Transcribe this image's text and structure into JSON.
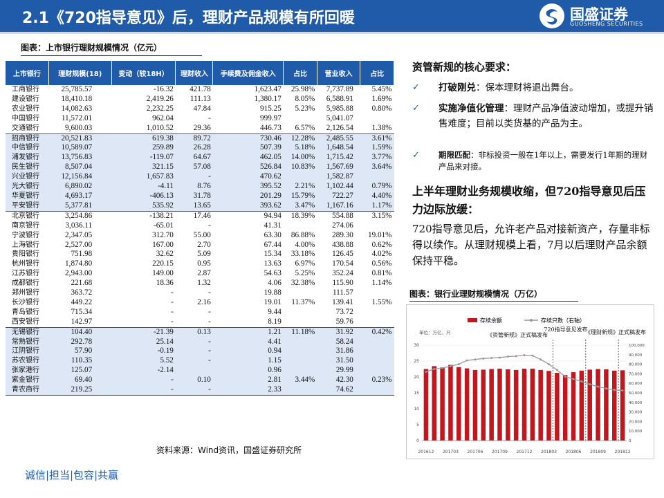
{
  "header": {
    "title": "2.1《720指导意见》后，理财产品规模有所回暖"
  },
  "logo": {
    "name": "国盛证券",
    "sub": "GUOSHENG SECURITIES",
    "icon": "guosheng-logo-icon"
  },
  "table_caption": "图表：上市银行理财规模情况（亿元）",
  "table": {
    "headers": [
      "上市银行",
      "理财规模(18)",
      "变动（较18H）",
      "理财收入",
      "手续费及佣金收入",
      "占比",
      "营业收入",
      "占比"
    ],
    "groups": [
      [
        [
          "工商银行",
          "25,785.57",
          "-16.32",
          "421.78",
          "1,623.47",
          "25.98%",
          "7,737.89",
          "5.45%"
        ],
        [
          "建设银行",
          "18,410.18",
          "2,419.26",
          "111.13",
          "1,380.17",
          "8.05%",
          "6,588.91",
          "1.69%"
        ],
        [
          "农业银行",
          "14,082.63",
          "2,232.25",
          "47.84",
          "915.25",
          "5.23%",
          "5,985.88",
          "0.80%"
        ],
        [
          "中国银行",
          "11,572.01",
          "962.04",
          "-",
          "999.97",
          "",
          "5,041.07",
          ""
        ],
        [
          "交通银行",
          "9,600.03",
          "1,010.52",
          "29.36",
          "446.73",
          "6.57%",
          "2,126.54",
          "1.38%"
        ]
      ],
      [
        [
          "招商银行",
          "20,521.83",
          "619.38",
          "89.72",
          "730.46",
          "12.28%",
          "2,485.55",
          "3.61%"
        ],
        [
          "中信银行",
          "10,589.07",
          "259.89",
          "26.28",
          "507.39",
          "5.18%",
          "1,648.54",
          "1.59%"
        ],
        [
          "浦发银行",
          "13,756.83",
          "-119.07",
          "64.67",
          "462.05",
          "14.00%",
          "1,715.42",
          "3.77%"
        ],
        [
          "民生银行",
          "8,507.04",
          "321.15",
          "57.08",
          "526.84",
          "10.83%",
          "1,567.69",
          "3.64%"
        ],
        [
          "兴业银行",
          "12,156.84",
          "1,657.83",
          "-",
          "470.62",
          "",
          "1,582.87",
          ""
        ],
        [
          "光大银行",
          "6,890.02",
          "-4.11",
          "8.76",
          "395.52",
          "2.21%",
          "1,102.44",
          "0.79%"
        ],
        [
          "华夏银行",
          "4,693.17",
          "-406.13",
          "31.78",
          "201.29",
          "15.79%",
          "722.27",
          "4.40%"
        ],
        [
          "平安银行",
          "5,377.81",
          "535.92",
          "13.65",
          "393.62",
          "3.47%",
          "1,167.16",
          "1.17%"
        ]
      ],
      [
        [
          "北京银行",
          "3,254.86",
          "-138.21",
          "17.46",
          "94.94",
          "18.39%",
          "554.88",
          "3.15%"
        ],
        [
          "南京银行",
          "3,036.11",
          "-65.01",
          "-",
          "41.31",
          "",
          "274.06",
          ""
        ],
        [
          "宁波银行",
          "2,347.05",
          "312.70",
          "55.00",
          "63.30",
          "86.88%",
          "289.30",
          "19.01%"
        ],
        [
          "上海银行",
          "2,527.00",
          "167.00",
          "2.70",
          "67.44",
          "4.00%",
          "438.88",
          "0.62%"
        ],
        [
          "贵阳银行",
          "751.98",
          "32.62",
          "5.09",
          "15.34",
          "33.18%",
          "126.45",
          "4.02%"
        ],
        [
          "杭州银行",
          "1,874.80",
          "220.15",
          "0.95",
          "13.63",
          "6.97%",
          "170.54",
          "0.56%"
        ],
        [
          "江苏银行",
          "2,943.00",
          "149.00",
          "2.87",
          "54.63",
          "5.25%",
          "352.24",
          "0.81%"
        ],
        [
          "成都银行",
          "221.68",
          "18.36",
          "1.32",
          "4.06",
          "32.38%",
          "115.90",
          "1.14%"
        ],
        [
          "郑州银行",
          "363.72",
          "-",
          "-",
          "19.88",
          "",
          "111.57",
          ""
        ],
        [
          "长沙银行",
          "449.22",
          "-",
          "2.16",
          "19.01",
          "11.37%",
          "139.41",
          "1.55%"
        ],
        [
          "青岛银行",
          "715.34",
          "-",
          "-",
          "9.44",
          "",
          "73.72",
          ""
        ],
        [
          "西安银行",
          "142.97",
          "-",
          "-",
          "8.19",
          "",
          "59.76",
          ""
        ]
      ],
      [
        [
          "无锡银行",
          "104.40",
          "-21.39",
          "0.13",
          "1.21",
          "11.18%",
          "31.92",
          "0.42%"
        ],
        [
          "常熟银行",
          "292.78",
          "25.14",
          "-",
          "4.41",
          "",
          "58.24",
          ""
        ],
        [
          "江阴银行",
          "57.90",
          "-0.19",
          "-",
          "0.94",
          "",
          "31.86",
          ""
        ],
        [
          "苏农银行",
          "110.35",
          "5.52",
          "-",
          "1.15",
          "",
          "31.50",
          ""
        ],
        [
          "张家港行",
          "125.07",
          "-2.14",
          "",
          "0.96",
          "",
          "29.99",
          ""
        ],
        [
          "紫金银行",
          "69.40",
          "-",
          "0.10",
          "2.81",
          "3.44%",
          "42.30",
          "0.23%"
        ],
        [
          "青农商行",
          "219.25",
          "-",
          "-",
          "2.33",
          "",
          "74.62",
          ""
        ]
      ]
    ]
  },
  "source": "资料来源：Wind资讯，国盛证券研究所",
  "footer": {
    "slogan": "诚信|担当|包容|共赢"
  },
  "right": {
    "heading": "资管新规的核心要求：",
    "bullets": [
      {
        "label": "打破刚兑",
        "sep": "：",
        "text": "保本理财将退出舞台。"
      },
      {
        "label": "实施净值化管理",
        "sep": "：",
        "text": "理财产品净值波动增加，或提升销售难度；目前以类货基的产品为主。"
      },
      {
        "label": "期限匹配",
        "sep": "：",
        "text": "非标投资一般在1年以上，需要发行1年期的理财产品来对接。"
      }
    ],
    "heading2": "上半年理财业务规模收缩，但720指导意见后压力边际放缓：",
    "paragraph": "720指导意见后，允许老产品对接新资产，存量非标得以续作。从理财规模上看，7月以后理财产品余额保持平稳。"
  },
  "chart_caption": "图表：银行业理财规模情况（万亿）",
  "chart_data": {
    "type": "bar",
    "title": "",
    "legend": [
      "存续余额",
      "存续只数（右轴）"
    ],
    "unit_label": "单位：万亿、只",
    "annotations": [
      "《资管新规》正式稿发布",
      "720指导意见发布",
      "《理财新规》正式稿发布"
    ],
    "x_ticks": [
      "201612",
      "201703",
      "201706",
      "201709",
      "201712",
      "201803",
      "201806",
      "201809",
      "201812"
    ],
    "categories": [
      "201612",
      "201701",
      "201702",
      "201703",
      "201704",
      "201705",
      "201706",
      "201707",
      "201708",
      "201709",
      "201710",
      "201711",
      "201712",
      "201801",
      "201802",
      "201803",
      "201804",
      "201805",
      "201806",
      "201807",
      "201808",
      "201809",
      "201810",
      "201811",
      "201812"
    ],
    "series": [
      {
        "name": "存续余额",
        "axis": "left",
        "values": [
          22.5,
          23.4,
          23.0,
          23.8,
          23.1,
          22.7,
          22.2,
          22.3,
          22.5,
          22.6,
          22.4,
          22.2,
          22.6,
          22.6,
          22.2,
          21.9,
          21.3,
          20.6,
          21.5,
          22.0,
          22.3,
          22.5,
          22.4,
          22.0,
          22.1
        ]
      },
      {
        "name": "存续只数（右轴）",
        "axis": "right",
        "values": [
          72000,
          75000,
          76000,
          78000,
          80000,
          84000,
          85000,
          86000,
          86500,
          87000,
          88000,
          88500,
          89500,
          89000,
          85000,
          80000,
          74000,
          67000,
          64500,
          62000,
          59000,
          56500,
          54500,
          53000,
          52500
        ]
      }
    ],
    "ylim_left": [
      0,
      30
    ],
    "yticks_left": [
      "0",
      "5",
      "10",
      "15",
      "20",
      "25",
      "30"
    ],
    "ylim_right": [
      0,
      100000
    ],
    "yticks_right": [
      "0",
      "10,000",
      "20,000",
      "30,000",
      "40,000",
      "50,000",
      "60,000",
      "70,000",
      "80,000",
      "90,000",
      "100,000"
    ],
    "annotation_after": [
      "201803",
      "201807",
      "201811"
    ],
    "colors": {
      "bar": "#c0181f",
      "line": "#999999"
    }
  }
}
